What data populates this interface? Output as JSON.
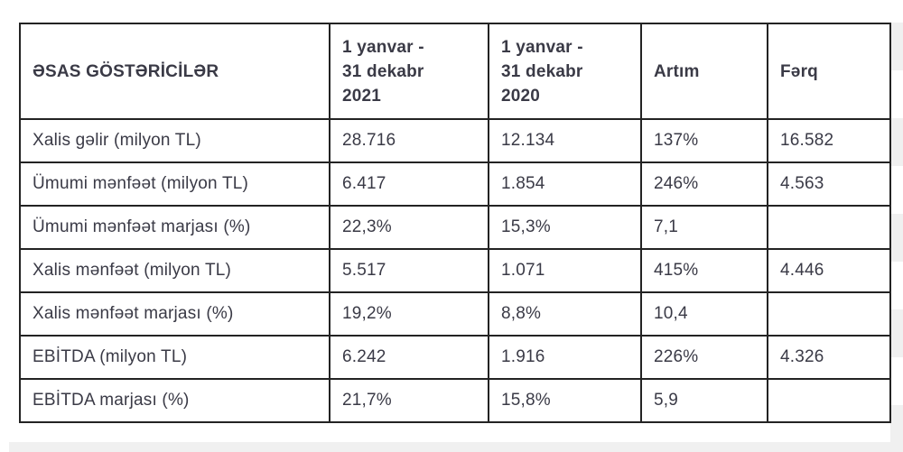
{
  "colors": {
    "border": "#232323",
    "text": "#3a3a46",
    "stripe": "#f0f0f0",
    "background": "#ffffff"
  },
  "table": {
    "header": {
      "indicators": "ƏSAS GÖSTƏRİCİLƏR",
      "period_2021": "1 yanvar -\n31 dekabr\n2021",
      "period_2020": "1 yanvar -\n31 dekabr\n2020",
      "growth": "Artım",
      "difference": "Fərq"
    },
    "rows": [
      {
        "label": "Xalis gəlir (milyon TL)",
        "y2021": "28.716",
        "y2020": "12.134",
        "artim": "137%",
        "ferq": "16.582"
      },
      {
        "label": "Ümumi mənfəət (milyon TL)",
        "y2021": "6.417",
        "y2020": "1.854",
        "artim": "246%",
        "ferq": "4.563"
      },
      {
        "label": "Ümumi mənfəət marjası (%)",
        "y2021": "22,3%",
        "y2020": "15,3%",
        "artim": "7,1",
        "ferq": ""
      },
      {
        "label": "Xalis mənfəət (milyon TL)",
        "y2021": "5.517",
        "y2020": "1.071",
        "artim": "415%",
        "ferq": "4.446"
      },
      {
        "label": "Xalis mənfəət marjası (%)",
        "y2021": "19,2%",
        "y2020": "8,8%",
        "artim": "10,4",
        "ferq": ""
      },
      {
        "label": "EBİTDA (milyon TL)",
        "y2021": "6.242",
        "y2020": "1.916",
        "artim": "226%",
        "ferq": "4.326"
      },
      {
        "label": "EBİTDA marjası (%)",
        "y2021": "21,7%",
        "y2020": "15,8%",
        "artim": "5,9",
        "ferq": ""
      }
    ]
  }
}
